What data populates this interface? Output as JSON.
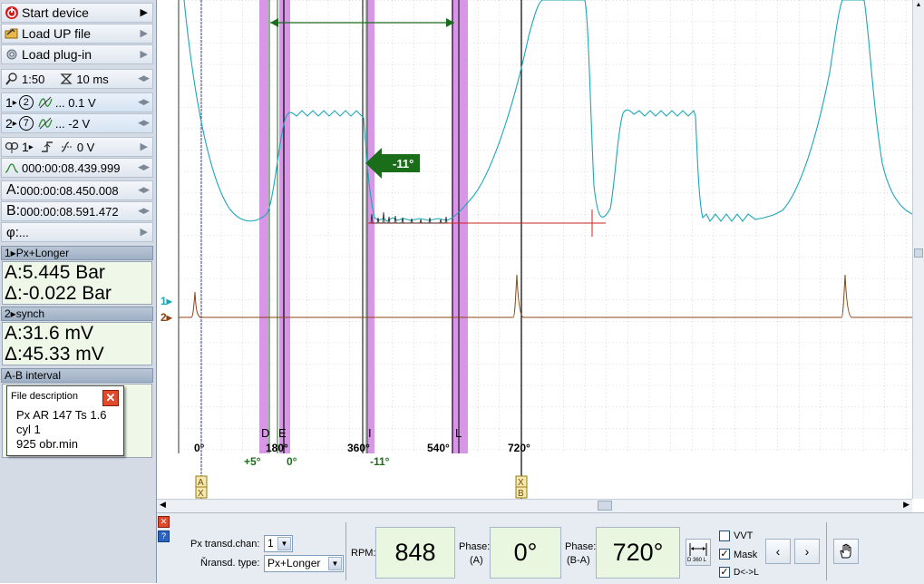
{
  "sidebar": {
    "start_device": "Start device",
    "load_up_file": "Load UP file",
    "load_plugin": "Load plug-in",
    "zoom": "1:50",
    "timebase": "10 ms",
    "ch1": {
      "num": "1",
      "probe": "2",
      "scale": "... 0.1 V"
    },
    "ch2": {
      "num": "2",
      "probe": "7",
      "scale": "... -2 V"
    },
    "trigger": {
      "channel": "1",
      "level": "0 V"
    },
    "trigger_time": "000:00:08.439.999",
    "cursor_a": "000:00:08.450.008",
    "cursor_b": "000:00:08.591.472",
    "phi": "...",
    "cursor_a_label": "A:",
    "cursor_b_label": "B:",
    "phi_label": "φ:",
    "ch1_section": "1▸Px+Longer",
    "ch1_a": "A:5.445 Bar",
    "ch1_delta": "Δ:-0.022 Bar",
    "ch2_section": "2▸synch",
    "ch2_a": "A:31.6 mV",
    "ch2_delta": "Δ:45.33 mV",
    "ab_section": "A-B interval"
  },
  "file_description": {
    "title": "File description",
    "lines": [
      "Px AR 147 Ts 1.6",
      "cyl 1",
      "925 obr.min"
    ]
  },
  "plot": {
    "arrow_label": "-11°",
    "markers": [
      "D",
      "E",
      "I",
      "L"
    ],
    "angles": [
      "0°",
      "180°",
      "360°",
      "540°",
      "720°"
    ],
    "offsets": [
      "+5°",
      "0°",
      "-11°"
    ],
    "ch1_marker": "1▸",
    "ch2_marker": "2▸",
    "cursor_a_tag": "A",
    "cursor_b_tag": "B",
    "cursor_x": "X",
    "colors": {
      "ch1": "#1ba7b8",
      "ch2": "#8b4513",
      "band": "#d896e6",
      "green": "#1a6e1a",
      "red": "#d22020"
    }
  },
  "bottom": {
    "px_chan_label": "Px transd.chan:",
    "px_chan_value": "1",
    "transd_type_label": "Ňransd. type:",
    "transd_type_value": "Px+Longer",
    "rpm_label": "RPM:",
    "rpm_value": "848",
    "phase_a_label": "Phase:",
    "phase_a_sub": "(A)",
    "phase_a_value": "0°",
    "phase_ba_label": "Phase:",
    "phase_ba_sub": "(B-A)",
    "phase_ba_value": "720°",
    "d360_label": "D 360 L",
    "vvt_label": "VVT",
    "mask_label": "Mask",
    "dl_label": "D<->L",
    "prev": "‹",
    "next": "›"
  }
}
